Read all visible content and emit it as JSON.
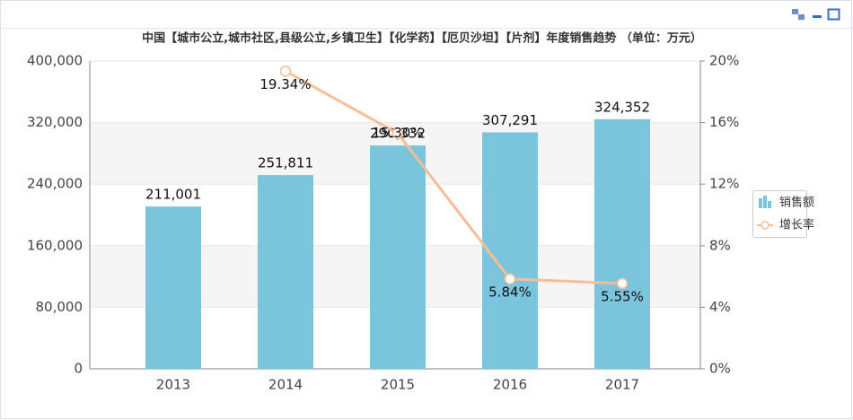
{
  "chart_data": {
    "type": "bar_line",
    "title": "中国【城市公立,城市社区,县级公立,乡镇卫生】【化学药】【厄贝沙坦】【片剂】年度销售趋势 （单位：万元）",
    "categories": [
      "2013",
      "2014",
      "2015",
      "2016",
      "2017"
    ],
    "series": [
      {
        "name": "销售额",
        "type": "bar",
        "color": "#7ac5dc",
        "values": [
          211001,
          251811,
          290332,
          307291,
          324352
        ],
        "value_labels": [
          "211,001",
          "251,811",
          "290,332",
          "307,291",
          "324,352"
        ]
      },
      {
        "name": "增长率",
        "type": "line",
        "axis": "y2",
        "color": "#f5be99",
        "values": [
          null,
          19.34,
          15.3,
          5.84,
          5.55
        ],
        "value_labels": [
          null,
          "19.34%",
          "15.30%",
          "5.84%",
          "5.55%"
        ]
      }
    ],
    "ylim": [
      0,
      400000
    ],
    "yticks": [
      0,
      {
        "value": 80000,
        "label": "80,000"
      },
      {
        "value": 160000,
        "label": "160,000"
      },
      {
        "value": 240000,
        "label": "240,000"
      },
      {
        "value": 320000,
        "label": "320,000"
      },
      {
        "value": 400000,
        "label": "400,000"
      }
    ],
    "y2lim": [
      0,
      20
    ],
    "y2ticks": [
      {
        "value": 0,
        "label": "0%"
      },
      {
        "value": 4,
        "label": "4%"
      },
      {
        "value": 8,
        "label": "8%"
      },
      {
        "value": 12,
        "label": "12%"
      },
      {
        "value": 16,
        "label": "16%"
      },
      {
        "value": 20,
        "label": "20%"
      }
    ],
    "grid": true,
    "legend": "right"
  }
}
